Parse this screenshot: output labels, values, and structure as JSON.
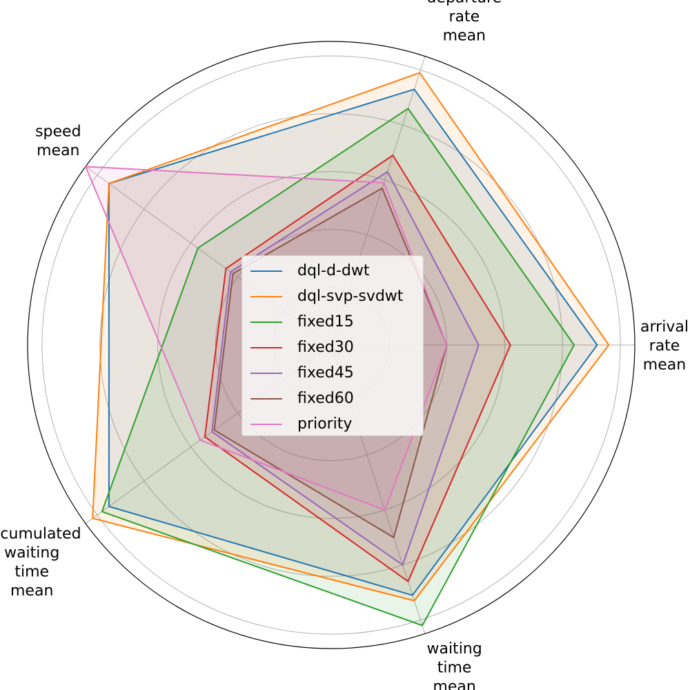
{
  "chart_data": {
    "type": "radar",
    "axes": [
      "arrival\nrate\nmean",
      "departure\nrate\nmean",
      "speed\nmean",
      "accumulated\nwaiting\ntime\nmean",
      "waiting\ntime\nmean"
    ],
    "rmax": 1.05,
    "grid_levels": [
      0.2,
      0.4,
      0.6,
      0.8,
      1.0
    ],
    "grid": true,
    "legend_position": "center",
    "series": [
      {
        "name": "dql-d-dwt",
        "color": "#1f77b4",
        "values": [
          0.92,
          0.93,
          0.95,
          0.95,
          0.91
        ]
      },
      {
        "name": "dql-svp-svdwt",
        "color": "#ff7f0e",
        "values": [
          0.96,
          0.99,
          0.95,
          1.02,
          0.93
        ]
      },
      {
        "name": "fixed15",
        "color": "#2ca02c",
        "values": [
          0.84,
          0.86,
          0.57,
          0.98,
          1.02
        ]
      },
      {
        "name": "fixed30",
        "color": "#d62728",
        "values": [
          0.62,
          0.69,
          0.45,
          0.54,
          0.86
        ]
      },
      {
        "name": "fixed45",
        "color": "#9467bd",
        "values": [
          0.51,
          0.63,
          0.43,
          0.51,
          0.8
        ]
      },
      {
        "name": "fixed60",
        "color": "#8c564b",
        "values": [
          0.4,
          0.57,
          0.42,
          0.5,
          0.7
        ]
      },
      {
        "name": "priority",
        "color": "#e377c2",
        "values": [
          0.4,
          0.59,
          1.05,
          0.56,
          0.6
        ]
      }
    ]
  }
}
